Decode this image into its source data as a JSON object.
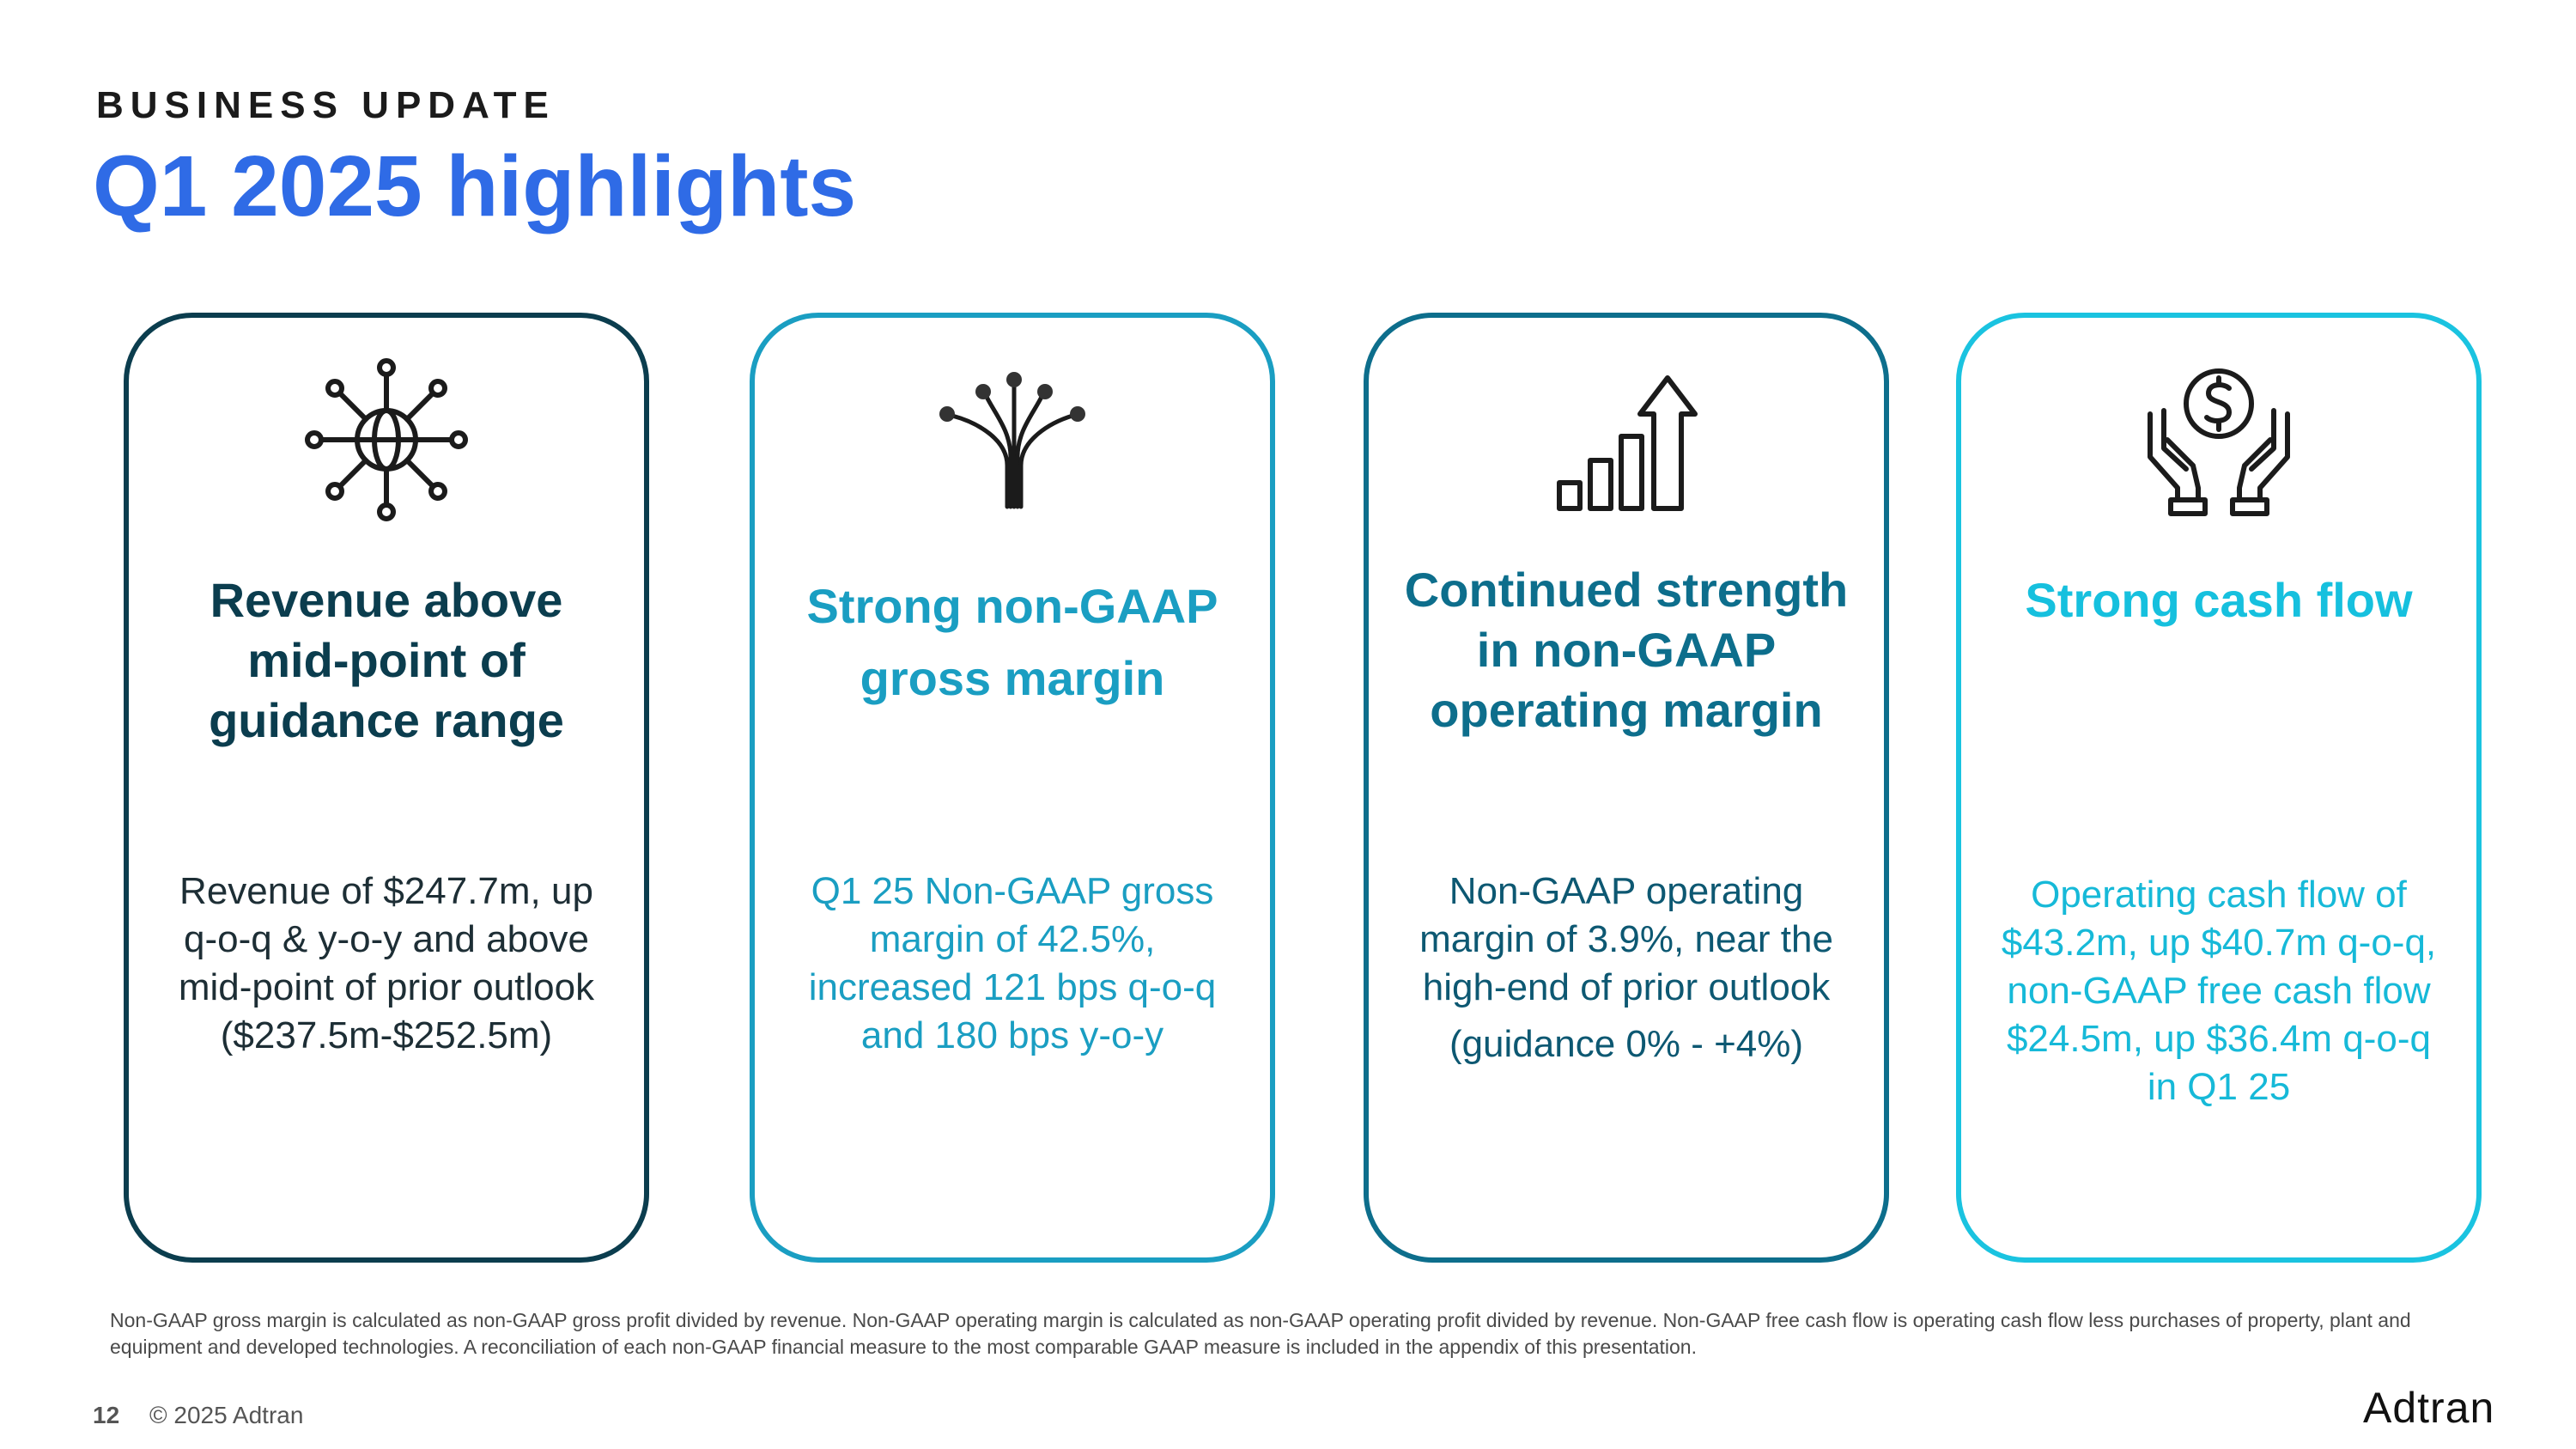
{
  "header": {
    "kicker": "BUSINESS UPDATE",
    "title": "Q1 2025 highlights"
  },
  "cards": [
    {
      "icon": "globe-network-icon",
      "heading": "Revenue above mid-point of guidance range",
      "body": "Revenue of $247.7m, up q-o-q & y-o-y and above mid-point of prior outlook ($237.5m-$252.5m)",
      "color": "#0b3d4e"
    },
    {
      "icon": "fiber-optic-icon",
      "heading": "Strong non-GAAP gross margin",
      "body": "Q1 25 Non-GAAP gross margin of 42.5%, increased 121 bps q-o-q and 180 bps y-o-y",
      "color": "#1a9ec2"
    },
    {
      "icon": "growth-chart-arrow-icon",
      "heading": "Continued strength in non-GAAP operating margin",
      "body": "Non-GAAP operating margin of 3.9%, near the high-end of prior outlook",
      "extra": "(guidance 0% - +4%)",
      "color": "#0d6e8c"
    },
    {
      "icon": "hands-dollar-icon",
      "heading": "Strong cash flow",
      "body": "Operating cash flow of $43.2m, up $40.7m q-o-q, non-GAAP free cash flow $24.5m, up $36.4m q-o-q in Q1 25",
      "color": "#16c0de"
    }
  ],
  "footnote": "Non-GAAP gross margin is calculated as non-GAAP gross profit divided by revenue. Non-GAAP operating margin is calculated as non-GAAP operating  profit divided by revenue. Non-GAAP free cash flow is operating cash flow less purchases of property, plant and equipment and developed technologies. A reconciliation of each non-GAAP financial measure to the most comparable GAAP measure is included in the appendix of this presentation.",
  "footer": {
    "page_number": "12",
    "copyright": "© 2025 Adtran",
    "logo": "Adtran"
  }
}
